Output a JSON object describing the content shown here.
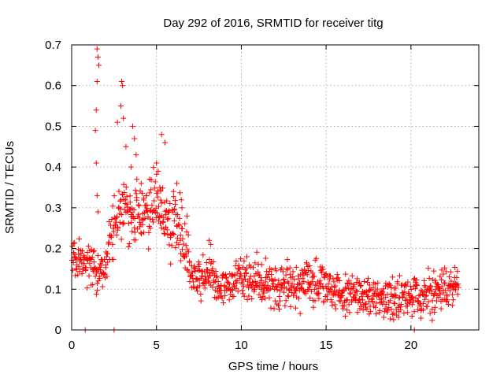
{
  "chart_data": {
    "type": "scatter",
    "title": "Day 292 of 2016, SRMTID for receiver titg",
    "xlabel": "GPS time / hours",
    "ylabel": "SRMTID / TECUs",
    "xlim": [
      0,
      24
    ],
    "ylim": [
      0,
      0.7
    ],
    "x_ticks": [
      "0",
      "5",
      "10",
      "15",
      "20"
    ],
    "y_ticks": [
      "0",
      "0.1",
      "0.2",
      "0.3",
      "0.4",
      "0.5",
      "0.6",
      "0.7"
    ],
    "grid": true,
    "marker": "plus",
    "marker_color": "#ff0000",
    "series": [
      {
        "name": "SRMTID",
        "trend": [
          [
            0.0,
            0.15
          ],
          [
            0.5,
            0.17
          ],
          [
            1.0,
            0.16
          ],
          [
            1.5,
            0.14
          ],
          [
            2.0,
            0.16
          ],
          [
            2.5,
            0.26
          ],
          [
            3.0,
            0.32
          ],
          [
            3.5,
            0.27
          ],
          [
            4.0,
            0.3
          ],
          [
            4.5,
            0.28
          ],
          [
            5.0,
            0.33
          ],
          [
            5.5,
            0.27
          ],
          [
            6.0,
            0.26
          ],
          [
            6.5,
            0.23
          ],
          [
            7.0,
            0.15
          ],
          [
            7.5,
            0.12
          ],
          [
            8.0,
            0.14
          ],
          [
            9.0,
            0.11
          ],
          [
            10.0,
            0.13
          ],
          [
            11.0,
            0.12
          ],
          [
            12.0,
            0.11
          ],
          [
            13.0,
            0.11
          ],
          [
            14.0,
            0.12
          ],
          [
            15.0,
            0.1
          ],
          [
            16.0,
            0.09
          ],
          [
            17.0,
            0.08
          ],
          [
            18.0,
            0.08
          ],
          [
            19.0,
            0.07
          ],
          [
            20.0,
            0.08
          ],
          [
            21.0,
            0.09
          ],
          [
            22.0,
            0.1
          ],
          [
            22.8,
            0.12
          ]
        ],
        "points": [
          [
            1.5,
            0.69
          ],
          [
            1.55,
            0.67
          ],
          [
            1.6,
            0.65
          ],
          [
            1.5,
            0.61
          ],
          [
            1.45,
            0.54
          ],
          [
            1.4,
            0.49
          ],
          [
            1.45,
            0.41
          ],
          [
            1.5,
            0.33
          ],
          [
            1.55,
            0.29
          ],
          [
            2.95,
            0.61
          ],
          [
            3.0,
            0.6
          ],
          [
            2.9,
            0.55
          ],
          [
            3.05,
            0.52
          ],
          [
            2.7,
            0.51
          ],
          [
            3.6,
            0.5
          ],
          [
            3.7,
            0.47
          ],
          [
            3.8,
            0.43
          ],
          [
            3.2,
            0.45
          ],
          [
            3.5,
            0.4
          ],
          [
            5.0,
            0.41
          ],
          [
            5.1,
            0.39
          ],
          [
            5.3,
            0.48
          ],
          [
            5.5,
            0.46
          ],
          [
            5.2,
            0.35
          ],
          [
            4.1,
            0.36
          ],
          [
            4.4,
            0.33
          ],
          [
            4.6,
            0.37
          ],
          [
            6.0,
            0.34
          ],
          [
            6.2,
            0.36
          ],
          [
            6.5,
            0.3
          ],
          [
            6.8,
            0.28
          ],
          [
            8.1,
            0.22
          ],
          [
            8.2,
            0.21
          ],
          [
            0.8,
            0.0
          ],
          [
            2.5,
            0.0
          ],
          [
            20.2,
            0.0
          ]
        ],
        "noise_amplitude": 0.05
      }
    ]
  }
}
